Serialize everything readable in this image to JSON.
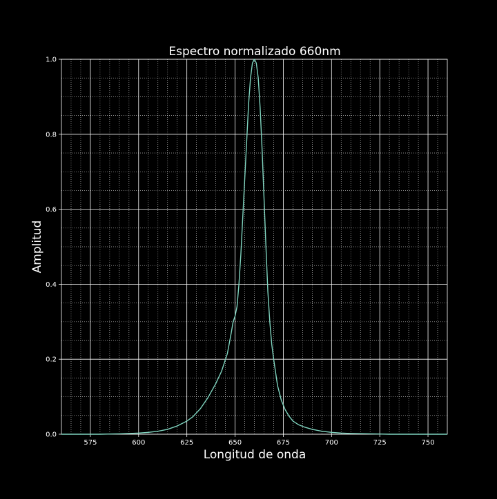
{
  "chart_data": {
    "type": "line",
    "title": "Espectro normalizado 660nm",
    "xlabel": "Longitud de onda",
    "ylabel": "Amplitud",
    "xlim": [
      560,
      760
    ],
    "ylim": [
      0,
      1.0
    ],
    "x_ticks": [
      575,
      600,
      625,
      650,
      675,
      700,
      725,
      750
    ],
    "y_ticks": [
      0.0,
      0.2,
      0.4,
      0.6,
      0.8,
      1.0
    ],
    "y_tick_labels": [
      "0.0",
      "0.2",
      "0.4",
      "0.6",
      "0.8",
      "1.0"
    ],
    "grid": true,
    "minor_grid": true,
    "legend": "none",
    "colors": {
      "background": "#000000",
      "line": "#7fd4bf",
      "grid": "#ffffff",
      "text": "#ffffff"
    },
    "series": [
      {
        "x": [
          560,
          570,
          580,
          590,
          595,
          600,
          605,
          610,
          615,
          620,
          625,
          628,
          632,
          636,
          640,
          643,
          646,
          648,
          649,
          650,
          651,
          652,
          653,
          654,
          655,
          656,
          657,
          658,
          659,
          660,
          661,
          662,
          663,
          664,
          665,
          666,
          667,
          668,
          669,
          670,
          671,
          672,
          674,
          676,
          678,
          680,
          683,
          686,
          690,
          695,
          700,
          705,
          710,
          720,
          730,
          740,
          750,
          760
        ],
        "y": [
          0.0,
          0.0,
          0.0,
          0.001,
          0.002,
          0.003,
          0.005,
          0.008,
          0.013,
          0.022,
          0.035,
          0.046,
          0.068,
          0.098,
          0.135,
          0.168,
          0.215,
          0.27,
          0.3,
          0.315,
          0.34,
          0.4,
          0.48,
          0.58,
          0.68,
          0.78,
          0.88,
          0.95,
          0.99,
          1.0,
          0.99,
          0.95,
          0.87,
          0.76,
          0.63,
          0.5,
          0.38,
          0.3,
          0.24,
          0.2,
          0.165,
          0.13,
          0.09,
          0.065,
          0.048,
          0.035,
          0.025,
          0.019,
          0.013,
          0.008,
          0.005,
          0.003,
          0.002,
          0.001,
          0.0,
          0.0,
          0.0,
          0.0
        ]
      }
    ]
  }
}
